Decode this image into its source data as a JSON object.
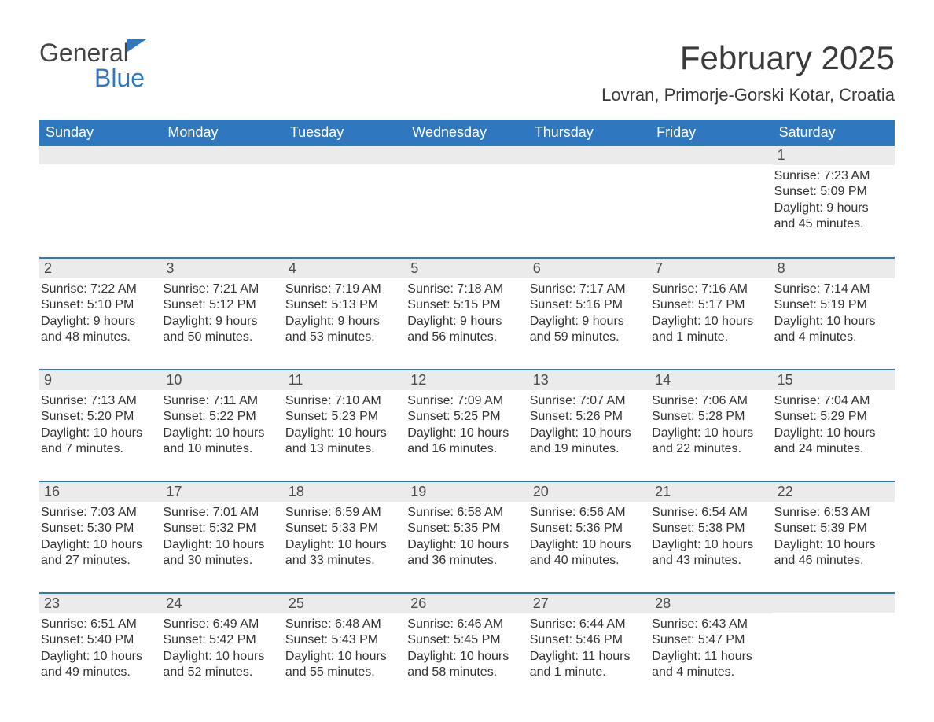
{
  "brand": {
    "name1": "General",
    "name2": "Blue",
    "accent_color": "#2f78bf"
  },
  "title": "February 2025",
  "location": "Lovran, Primorje-Gorski Kotar, Croatia",
  "colors": {
    "header_bg": "#2f78bf",
    "header_text": "#ffffff",
    "daynum_bg": "#ebebeb",
    "text": "#333333",
    "week_border": "#2f78bf"
  },
  "dow": [
    "Sunday",
    "Monday",
    "Tuesday",
    "Wednesday",
    "Thursday",
    "Friday",
    "Saturday"
  ],
  "weeks": [
    [
      {
        "n": "",
        "sr": "",
        "ss": "",
        "dl": ""
      },
      {
        "n": "",
        "sr": "",
        "ss": "",
        "dl": ""
      },
      {
        "n": "",
        "sr": "",
        "ss": "",
        "dl": ""
      },
      {
        "n": "",
        "sr": "",
        "ss": "",
        "dl": ""
      },
      {
        "n": "",
        "sr": "",
        "ss": "",
        "dl": ""
      },
      {
        "n": "",
        "sr": "",
        "ss": "",
        "dl": ""
      },
      {
        "n": "1",
        "sr": "Sunrise: 7:23 AM",
        "ss": "Sunset: 5:09 PM",
        "dl": "Daylight: 9 hours and 45 minutes."
      }
    ],
    [
      {
        "n": "2",
        "sr": "Sunrise: 7:22 AM",
        "ss": "Sunset: 5:10 PM",
        "dl": "Daylight: 9 hours and 48 minutes."
      },
      {
        "n": "3",
        "sr": "Sunrise: 7:21 AM",
        "ss": "Sunset: 5:12 PM",
        "dl": "Daylight: 9 hours and 50 minutes."
      },
      {
        "n": "4",
        "sr": "Sunrise: 7:19 AM",
        "ss": "Sunset: 5:13 PM",
        "dl": "Daylight: 9 hours and 53 minutes."
      },
      {
        "n": "5",
        "sr": "Sunrise: 7:18 AM",
        "ss": "Sunset: 5:15 PM",
        "dl": "Daylight: 9 hours and 56 minutes."
      },
      {
        "n": "6",
        "sr": "Sunrise: 7:17 AM",
        "ss": "Sunset: 5:16 PM",
        "dl": "Daylight: 9 hours and 59 minutes."
      },
      {
        "n": "7",
        "sr": "Sunrise: 7:16 AM",
        "ss": "Sunset: 5:17 PM",
        "dl": "Daylight: 10 hours and 1 minute."
      },
      {
        "n": "8",
        "sr": "Sunrise: 7:14 AM",
        "ss": "Sunset: 5:19 PM",
        "dl": "Daylight: 10 hours and 4 minutes."
      }
    ],
    [
      {
        "n": "9",
        "sr": "Sunrise: 7:13 AM",
        "ss": "Sunset: 5:20 PM",
        "dl": "Daylight: 10 hours and 7 minutes."
      },
      {
        "n": "10",
        "sr": "Sunrise: 7:11 AM",
        "ss": "Sunset: 5:22 PM",
        "dl": "Daylight: 10 hours and 10 minutes."
      },
      {
        "n": "11",
        "sr": "Sunrise: 7:10 AM",
        "ss": "Sunset: 5:23 PM",
        "dl": "Daylight: 10 hours and 13 minutes."
      },
      {
        "n": "12",
        "sr": "Sunrise: 7:09 AM",
        "ss": "Sunset: 5:25 PM",
        "dl": "Daylight: 10 hours and 16 minutes."
      },
      {
        "n": "13",
        "sr": "Sunrise: 7:07 AM",
        "ss": "Sunset: 5:26 PM",
        "dl": "Daylight: 10 hours and 19 minutes."
      },
      {
        "n": "14",
        "sr": "Sunrise: 7:06 AM",
        "ss": "Sunset: 5:28 PM",
        "dl": "Daylight: 10 hours and 22 minutes."
      },
      {
        "n": "15",
        "sr": "Sunrise: 7:04 AM",
        "ss": "Sunset: 5:29 PM",
        "dl": "Daylight: 10 hours and 24 minutes."
      }
    ],
    [
      {
        "n": "16",
        "sr": "Sunrise: 7:03 AM",
        "ss": "Sunset: 5:30 PM",
        "dl": "Daylight: 10 hours and 27 minutes."
      },
      {
        "n": "17",
        "sr": "Sunrise: 7:01 AM",
        "ss": "Sunset: 5:32 PM",
        "dl": "Daylight: 10 hours and 30 minutes."
      },
      {
        "n": "18",
        "sr": "Sunrise: 6:59 AM",
        "ss": "Sunset: 5:33 PM",
        "dl": "Daylight: 10 hours and 33 minutes."
      },
      {
        "n": "19",
        "sr": "Sunrise: 6:58 AM",
        "ss": "Sunset: 5:35 PM",
        "dl": "Daylight: 10 hours and 36 minutes."
      },
      {
        "n": "20",
        "sr": "Sunrise: 6:56 AM",
        "ss": "Sunset: 5:36 PM",
        "dl": "Daylight: 10 hours and 40 minutes."
      },
      {
        "n": "21",
        "sr": "Sunrise: 6:54 AM",
        "ss": "Sunset: 5:38 PM",
        "dl": "Daylight: 10 hours and 43 minutes."
      },
      {
        "n": "22",
        "sr": "Sunrise: 6:53 AM",
        "ss": "Sunset: 5:39 PM",
        "dl": "Daylight: 10 hours and 46 minutes."
      }
    ],
    [
      {
        "n": "23",
        "sr": "Sunrise: 6:51 AM",
        "ss": "Sunset: 5:40 PM",
        "dl": "Daylight: 10 hours and 49 minutes."
      },
      {
        "n": "24",
        "sr": "Sunrise: 6:49 AM",
        "ss": "Sunset: 5:42 PM",
        "dl": "Daylight: 10 hours and 52 minutes."
      },
      {
        "n": "25",
        "sr": "Sunrise: 6:48 AM",
        "ss": "Sunset: 5:43 PM",
        "dl": "Daylight: 10 hours and 55 minutes."
      },
      {
        "n": "26",
        "sr": "Sunrise: 6:46 AM",
        "ss": "Sunset: 5:45 PM",
        "dl": "Daylight: 10 hours and 58 minutes."
      },
      {
        "n": "27",
        "sr": "Sunrise: 6:44 AM",
        "ss": "Sunset: 5:46 PM",
        "dl": "Daylight: 11 hours and 1 minute."
      },
      {
        "n": "28",
        "sr": "Sunrise: 6:43 AM",
        "ss": "Sunset: 5:47 PM",
        "dl": "Daylight: 11 hours and 4 minutes."
      },
      {
        "n": "",
        "sr": "",
        "ss": "",
        "dl": ""
      }
    ]
  ]
}
